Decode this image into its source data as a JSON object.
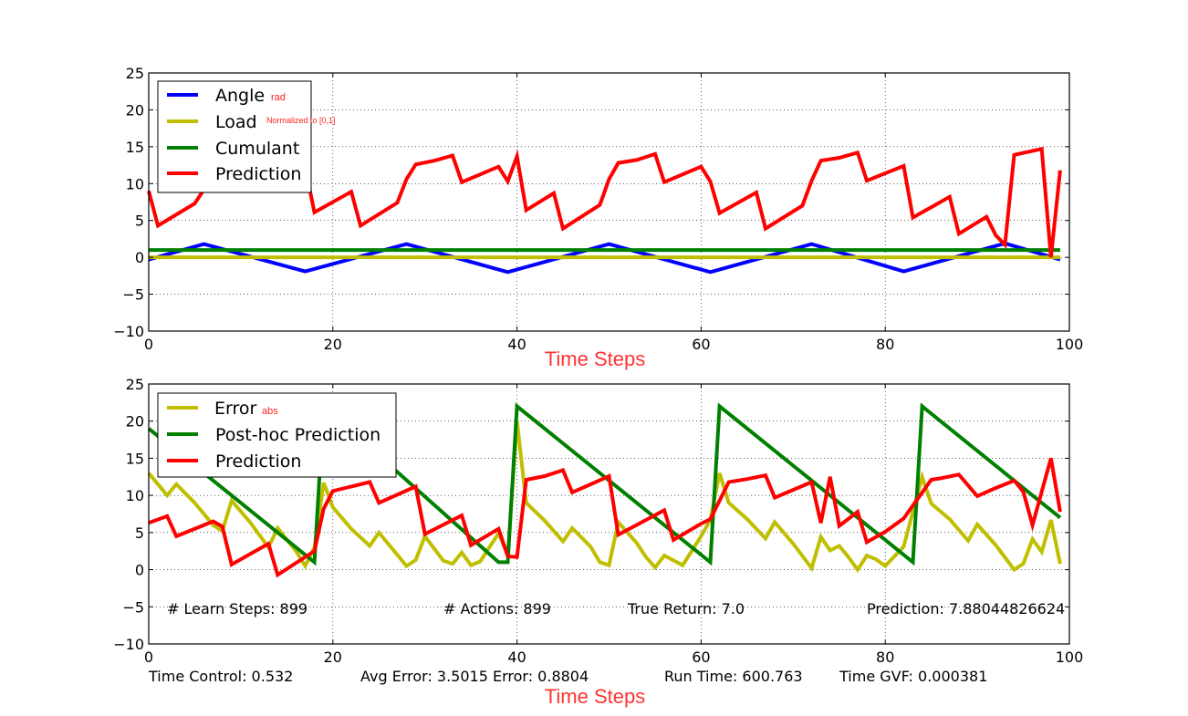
{
  "chart_data": [
    {
      "type": "line",
      "xlabel": "Time Steps",
      "xlim": [
        0,
        100
      ],
      "ylim": [
        -10,
        25
      ],
      "xticks": [
        "0",
        "20",
        "40",
        "60",
        "80",
        "100"
      ],
      "yticks": [
        "−10",
        "−5",
        "0",
        "5",
        "10",
        "15",
        "20",
        "25"
      ],
      "grid": true,
      "legend_position": "top-left",
      "series": [
        {
          "name": "Angle",
          "subscript": "rad",
          "color": "#0000ff",
          "x": [
            0,
            6,
            17,
            28,
            39,
            50,
            61,
            72,
            82,
            93,
            99
          ],
          "y": [
            -0.3,
            1.8,
            -1.9,
            1.8,
            -2.0,
            1.8,
            -2.0,
            1.8,
            -1.9,
            1.9,
            -0.3
          ]
        },
        {
          "name": "Load",
          "subscript": "Normalized to [0,1]",
          "color": "#bfbf00",
          "x": [
            0,
            99
          ],
          "y": [
            0,
            0
          ]
        },
        {
          "name": "Cumulant",
          "color": "#008000",
          "x": [
            0,
            99
          ],
          "y": [
            1,
            1
          ]
        },
        {
          "name": "Prediction",
          "color": "#ff0000",
          "x": [
            0,
            1,
            5,
            6,
            9,
            17,
            18,
            22,
            23,
            27,
            28,
            29,
            31,
            33,
            34,
            38,
            39,
            40,
            41,
            44,
            45,
            49,
            50,
            51,
            53,
            55,
            56,
            60,
            61,
            62,
            66,
            67,
            71,
            72,
            73,
            75,
            77,
            78,
            82,
            83,
            87,
            88,
            91,
            92,
            93,
            94,
            97,
            98,
            99
          ],
          "y": [
            9,
            4.3,
            7.3,
            9.2,
            11.2,
            12.2,
            6.1,
            8.9,
            4.3,
            7.4,
            10.6,
            12.6,
            13.1,
            13.8,
            10.2,
            12.3,
            10.3,
            13.7,
            6.4,
            8.7,
            3.9,
            7.1,
            10.6,
            12.8,
            13.2,
            14,
            10.2,
            12.3,
            10.3,
            6,
            8.8,
            3.9,
            7,
            10.4,
            13.1,
            13.5,
            14.2,
            10.4,
            12.4,
            5.4,
            8.2,
            3.2,
            5.5,
            3,
            1.7,
            13.9,
            14.7,
            0,
            11.8
          ]
        }
      ]
    },
    {
      "type": "line",
      "xlabel": "Time Steps",
      "xlim": [
        0,
        100
      ],
      "ylim": [
        -10,
        25
      ],
      "xticks": [
        "0",
        "20",
        "40",
        "60",
        "80",
        "100"
      ],
      "yticks": [
        "−10",
        "−5",
        "0",
        "5",
        "10",
        "15",
        "20",
        "25"
      ],
      "grid": true,
      "legend_position": "top-left",
      "series": [
        {
          "name": "Error",
          "subscript": "abs",
          "color": "#bfbf00",
          "x": [
            0,
            2,
            3,
            5,
            7,
            8,
            9,
            11,
            13,
            14,
            16,
            17,
            18,
            19,
            20,
            22,
            24,
            25,
            27,
            28,
            29,
            30,
            32,
            33,
            34,
            35,
            36,
            38,
            39,
            40,
            41,
            43,
            45,
            46,
            48,
            49,
            50,
            51,
            53,
            54,
            55,
            56,
            58,
            60,
            61,
            62,
            63,
            65,
            67,
            68,
            70,
            72,
            73,
            74,
            75,
            76,
            77,
            78,
            79,
            80,
            82,
            84,
            85,
            87,
            89,
            90,
            92,
            94,
            95,
            96,
            97,
            98,
            99
          ],
          "y": [
            13,
            10,
            11.5,
            9,
            6,
            5.2,
            9.3,
            6.4,
            3,
            5.6,
            2.5,
            0.5,
            3,
            11.7,
            8.4,
            5.5,
            3.2,
            5,
            2,
            0.5,
            1.3,
            4.5,
            1.2,
            0.8,
            2.3,
            0.6,
            1.1,
            4.9,
            2,
            20,
            9,
            6.6,
            3.8,
            5.6,
            3.1,
            1,
            0.6,
            6.4,
            3.6,
            1.7,
            0.3,
            1.9,
            0.6,
            4.5,
            6.7,
            13,
            9,
            6.8,
            4.2,
            6.4,
            3.5,
            0.2,
            4.4,
            2.6,
            3.2,
            1.7,
            0,
            1.9,
            1.4,
            0.5,
            3.1,
            12.5,
            8.9,
            6.8,
            3.9,
            6.1,
            3.3,
            0,
            0.8,
            4.1,
            2.4,
            6.7,
            0.8
          ]
        },
        {
          "name": "Post-hoc Prediction",
          "color": "#008000",
          "x": [
            0,
            18,
            19,
            38,
            39,
            40,
            61,
            62,
            83,
            84,
            99
          ],
          "y": [
            19,
            1,
            22,
            1,
            1,
            22,
            1,
            22,
            1,
            22,
            7
          ]
        },
        {
          "name": "Prediction",
          "color": "#ff0000",
          "x": [
            0,
            2,
            3,
            7,
            8,
            9,
            13,
            14,
            18,
            19,
            20,
            22,
            24,
            25,
            29,
            30,
            34,
            35,
            38,
            39,
            40,
            41,
            43,
            45,
            46,
            50,
            51,
            56,
            57,
            60,
            61,
            63,
            65,
            67,
            68,
            72,
            73,
            74,
            75,
            77,
            78,
            80,
            82,
            85,
            86,
            88,
            90,
            92,
            94,
            95,
            96,
            98,
            99
          ],
          "y": [
            6.3,
            7.2,
            4.5,
            6.5,
            5.8,
            0.7,
            3.5,
            -0.7,
            2.5,
            8.2,
            10.6,
            11.2,
            11.8,
            9,
            11.2,
            4.8,
            7.3,
            3.3,
            5.5,
            1.8,
            1.7,
            12.1,
            12.6,
            13.4,
            10.4,
            12.6,
            4.7,
            8,
            4,
            6.2,
            6.8,
            11.8,
            12.2,
            12.7,
            9.7,
            11.8,
            6.3,
            12.5,
            5.9,
            7.8,
            3.7,
            5.1,
            6.9,
            12.1,
            12.3,
            12.8,
            9.9,
            11,
            12,
            10.5,
            6,
            15,
            7.8
          ]
        }
      ],
      "stats_row": [
        "# Learn Steps: 899",
        "# Actions: 899",
        "True Return: 7.0",
        "Prediction: 7.88044826624"
      ],
      "footer_row": [
        "Time Control: 0.532",
        "Avg Error: 3.5015 Error: 0.8804",
        "Run Time: 600.763",
        "Time GVF: 0.000381"
      ]
    }
  ]
}
